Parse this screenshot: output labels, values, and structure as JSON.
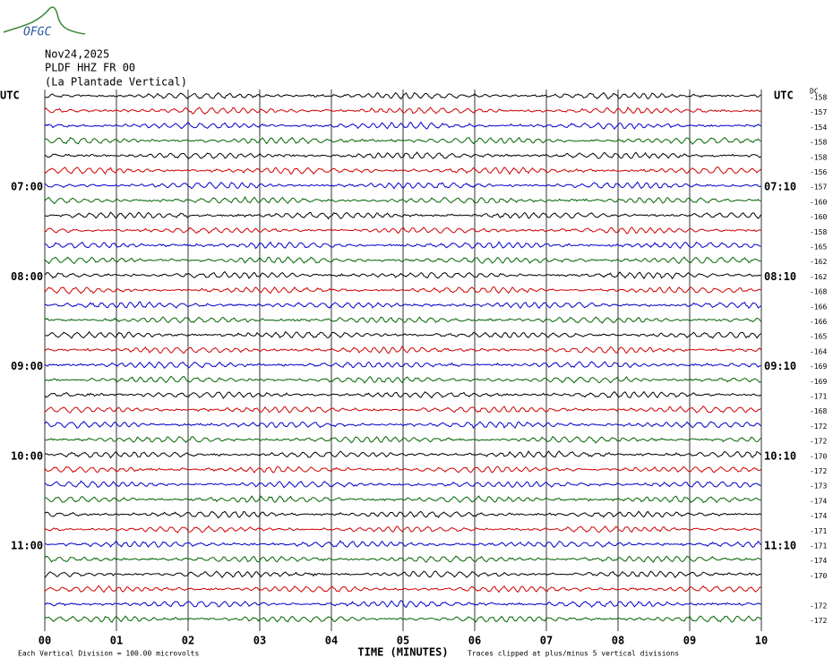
{
  "logo": "OFGC",
  "header": {
    "date": "Nov24,2025",
    "station": "PLDF HHZ FR 00",
    "name": "(La Plantade Vertical)"
  },
  "left_axis_label": "UTC",
  "right_axis_label": "UTC",
  "dc_label": "DC",
  "rows": [
    {
      "left": null,
      "right": null,
      "dc": -158
    },
    {
      "left": null,
      "right": null,
      "dc": -157
    },
    {
      "left": null,
      "right": null,
      "dc": -154
    },
    {
      "left": null,
      "right": null,
      "dc": -158
    },
    {
      "left": null,
      "right": null,
      "dc": -158
    },
    {
      "left": null,
      "right": null,
      "dc": -156
    },
    {
      "left": "07:00",
      "right": "07:10",
      "dc": -157
    },
    {
      "left": null,
      "right": null,
      "dc": -160
    },
    {
      "left": null,
      "right": null,
      "dc": -160
    },
    {
      "left": null,
      "right": null,
      "dc": -158
    },
    {
      "left": null,
      "right": null,
      "dc": -165
    },
    {
      "left": null,
      "right": null,
      "dc": -162
    },
    {
      "left": "08:00",
      "right": "08:10",
      "dc": -162
    },
    {
      "left": null,
      "right": null,
      "dc": -168
    },
    {
      "left": null,
      "right": null,
      "dc": -166
    },
    {
      "left": null,
      "right": null,
      "dc": -166
    },
    {
      "left": null,
      "right": null,
      "dc": -165
    },
    {
      "left": null,
      "right": null,
      "dc": -164
    },
    {
      "left": "09:00",
      "right": "09:10",
      "dc": -169
    },
    {
      "left": null,
      "right": null,
      "dc": -169
    },
    {
      "left": null,
      "right": null,
      "dc": -171
    },
    {
      "left": null,
      "right": null,
      "dc": -168
    },
    {
      "left": null,
      "right": null,
      "dc": -172
    },
    {
      "left": null,
      "right": null,
      "dc": -172
    },
    {
      "left": "10:00",
      "right": "10:10",
      "dc": -170
    },
    {
      "left": null,
      "right": null,
      "dc": -172
    },
    {
      "left": null,
      "right": null,
      "dc": -173
    },
    {
      "left": null,
      "right": null,
      "dc": -174
    },
    {
      "left": null,
      "right": null,
      "dc": -174
    },
    {
      "left": null,
      "right": null,
      "dc": -171
    },
    {
      "left": "11:00",
      "right": "11:10",
      "dc": -171
    },
    {
      "left": null,
      "right": null,
      "dc": -174
    },
    {
      "left": null,
      "right": null,
      "dc": -170
    },
    {
      "left": null,
      "right": null,
      "dc": null
    },
    {
      "left": null,
      "right": null,
      "dc": -172
    },
    {
      "left": null,
      "right": null,
      "dc": -172
    }
  ],
  "x_ticks": [
    "00",
    "01",
    "02",
    "03",
    "04",
    "05",
    "06",
    "07",
    "08",
    "09",
    "10"
  ],
  "x_axis_label": "TIME (MINUTES)",
  "footnote_left": "Each Vertical Division =  100.00 microvolts",
  "footnote_right": "Traces clipped at plus/minus 5 vertical divisions"
}
